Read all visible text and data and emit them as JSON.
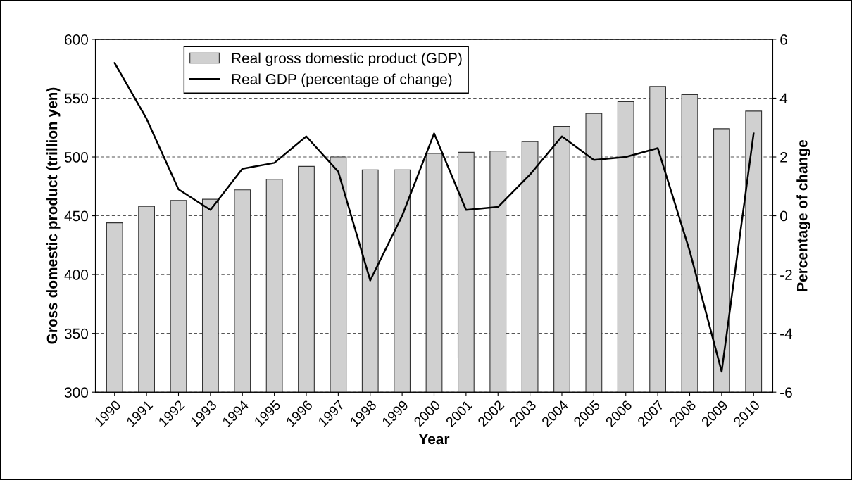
{
  "chart_data": {
    "type": "bar",
    "xlabel": "Year",
    "ylabel": "Gross domestic product (trillion yen)",
    "y2label": "Percentage of change",
    "categories": [
      "1990",
      "1991",
      "1992",
      "1993",
      "1994",
      "1995",
      "1996",
      "1997",
      "1998",
      "1999",
      "2000",
      "2001",
      "2002",
      "2003",
      "2004",
      "2005",
      "2006",
      "2007",
      "2008",
      "2009",
      "2010"
    ],
    "series": [
      {
        "name": "Real gross domestic product (GDP)",
        "color": "#d0d0d0",
        "values": [
          444,
          458,
          463,
          464,
          472,
          481,
          492,
          500,
          489,
          489,
          503,
          504,
          505,
          513,
          526,
          537,
          547,
          560,
          553,
          524,
          539
        ]
      },
      {
        "name": "Real GDP (percentage of change)",
        "type": "line",
        "axis": "y2",
        "color": "#000000",
        "values": [
          5.2,
          3.3,
          0.9,
          0.2,
          1.6,
          1.8,
          2.7,
          1.5,
          -2.2,
          0.0,
          2.8,
          0.2,
          0.3,
          1.4,
          2.7,
          1.9,
          2.0,
          2.3,
          -1.2,
          -5.3,
          2.8
        ]
      }
    ],
    "ylim": [
      300,
      600
    ],
    "yticks": [
      300,
      350,
      400,
      450,
      500,
      550,
      600
    ],
    "y2lim": [
      -6,
      6
    ],
    "y2ticks": [
      -6,
      -4,
      -2,
      0,
      2,
      4,
      6
    ],
    "grid": "y",
    "legend": "top left",
    "marker": "none",
    "line_style": "solid"
  }
}
